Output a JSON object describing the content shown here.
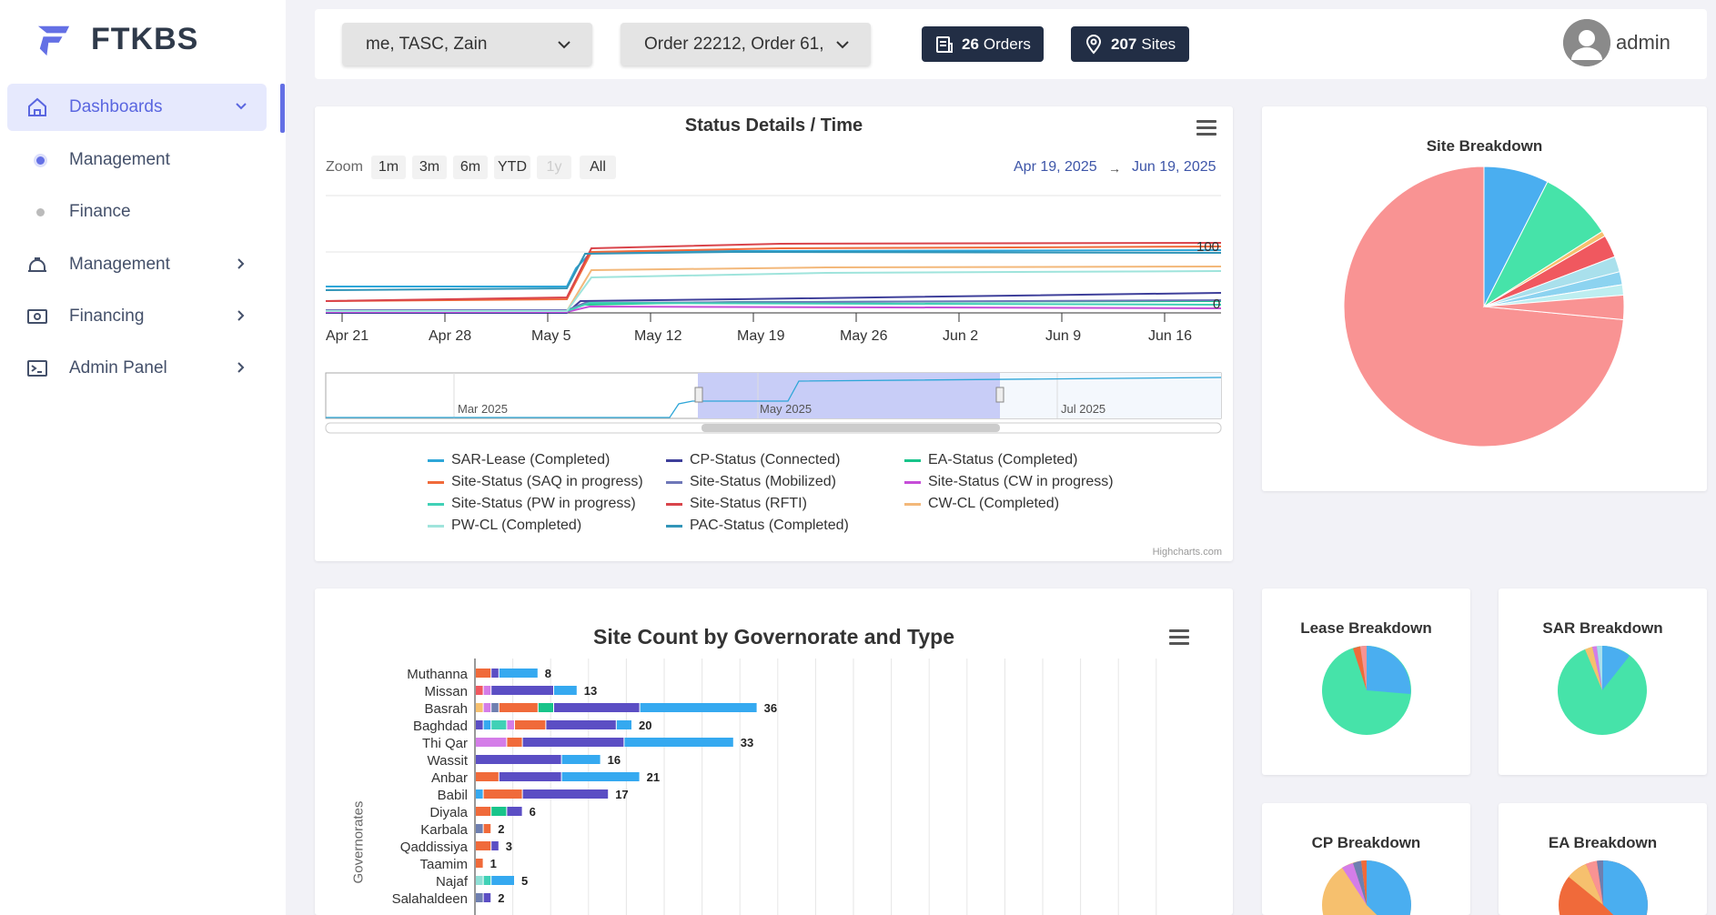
{
  "brand": {
    "name": "FTKBS"
  },
  "sidebar": {
    "items": [
      {
        "label": "Dashboards",
        "icon": "home-icon"
      },
      {
        "label": "Management",
        "icon": "dot-icon"
      },
      {
        "label": "Finance",
        "icon": "dot-icon"
      },
      {
        "label": "Management",
        "icon": "hard-hat-icon"
      },
      {
        "label": "Financing",
        "icon": "money-icon"
      },
      {
        "label": "Admin Panel",
        "icon": "terminal-icon"
      }
    ]
  },
  "topbar": {
    "filter1": "me, TASC, Zain",
    "filter2": "Order 22212, Order 61,",
    "orders_count": "26",
    "orders_label": "Orders",
    "sites_count": "207",
    "sites_label": "Sites",
    "user": "admin"
  },
  "status_chart": {
    "title": "Status Details / Time",
    "zoom_label": "Zoom",
    "zoom_buttons": [
      "1m",
      "3m",
      "6m",
      "YTD",
      "1y",
      "All"
    ],
    "date_from": "Apr 19, 2025",
    "date_to": "Jun 19, 2025",
    "arrow": "→",
    "credit": "Highcharts.com",
    "y_labels": [
      "100",
      "0"
    ],
    "navigator_labels": [
      "Mar 2025",
      "May 2025",
      "Jul 2025"
    ]
  },
  "site_breakdown": {
    "title": "Site Breakdown"
  },
  "small_pies": {
    "lease": "Lease Breakdown",
    "sar": "SAR Breakdown",
    "cp": "CP Breakdown",
    "ea": "EA Breakdown"
  },
  "bar_chart": {
    "title": "Site Count by Governorate and Type",
    "ylabel": "Governorates"
  },
  "colors": {
    "accent": "#6470e5",
    "dark_pill": "#222e45",
    "link": "#3d55a8"
  },
  "chart_data": [
    {
      "type": "line",
      "title": "Status Details / Time",
      "x_ticks": [
        "Apr 21",
        "Apr 28",
        "May 5",
        "May 12",
        "May 19",
        "May 26",
        "Jun 2",
        "Jun 9",
        "Jun 16"
      ],
      "series": [
        {
          "name": "SAR-Lease (Completed)",
          "color": "#2ea6d8"
        },
        {
          "name": "CP-Status (Connected)",
          "color": "#3e3f9a"
        },
        {
          "name": "EA-Status (Completed)",
          "color": "#18c48a"
        },
        {
          "name": "Site-Status (SAQ in progress)",
          "color": "#f06a3a"
        },
        {
          "name": "Site-Status (Mobilized)",
          "color": "#6e77b8"
        },
        {
          "name": "Site-Status (CW in progress)",
          "color": "#c64dd8"
        },
        {
          "name": "Site-Status (PW in progress)",
          "color": "#40d1b6"
        },
        {
          "name": "Site-Status (RFTI)",
          "color": "#d9444b"
        },
        {
          "name": "CW-CL (Completed)",
          "color": "#f3b87a"
        },
        {
          "name": "PW-CL (Completed)",
          "color": "#9fe4dc"
        },
        {
          "name": "PAC-Status (Completed)",
          "color": "#3295b8"
        }
      ]
    },
    {
      "type": "pie",
      "title": "Site Breakdown",
      "slices": [
        {
          "value": 73.5,
          "color": "#f99393"
        },
        {
          "value": 7.5,
          "color": "#4aaef0"
        },
        {
          "value": 8.5,
          "color": "#46e3a9"
        },
        {
          "value": 0.6,
          "color": "#f6c06e"
        },
        {
          "value": 2.6,
          "color": "#f0585f"
        },
        {
          "value": 1.8,
          "color": "#a9e0ec"
        },
        {
          "value": 1.5,
          "color": "#8cd3f0"
        },
        {
          "value": 1.2,
          "color": "#bdeef0"
        },
        {
          "value": 2.8,
          "color": "#f99393"
        }
      ]
    },
    {
      "type": "bar",
      "title": "Site Count by Governorate and Type",
      "ylabel": "Governorates",
      "categories": [
        "Muthanna",
        "Missan",
        "Basrah",
        "Baghdad",
        "Thi Qar",
        "Wassit",
        "Anbar",
        "Babil",
        "Diyala",
        "Karbala",
        "Qaddissiya",
        "Taamim",
        "Najaf",
        "Salahaldeen"
      ],
      "totals": [
        8,
        13,
        36,
        20,
        33,
        16,
        21,
        17,
        6,
        2,
        3,
        1,
        5,
        2
      ],
      "segments": [
        [
          [
            "#f06a3a",
            2
          ],
          [
            "#5b4ec4",
            1
          ],
          [
            "#35a9f0",
            5
          ]
        ],
        [
          [
            "#f0585f",
            1
          ],
          [
            "#d47de8",
            1
          ],
          [
            "#5b4ec4",
            8
          ],
          [
            "#35a9f0",
            3
          ]
        ],
        [
          [
            "#f6c06e",
            1
          ],
          [
            "#d47de8",
            1
          ],
          [
            "#6e7fb0",
            1
          ],
          [
            "#f06a3a",
            5
          ],
          [
            "#18c48a",
            2
          ],
          [
            "#5b4ec4",
            11
          ],
          [
            "#35a9f0",
            15
          ]
        ],
        [
          [
            "#5b4ec4",
            1
          ],
          [
            "#35a9f0",
            1
          ],
          [
            "#40d1b6",
            2
          ],
          [
            "#d47de8",
            1
          ],
          [
            "#f06a3a",
            4
          ],
          [
            "#5b4ec4",
            9
          ],
          [
            "#35a9f0",
            2
          ]
        ],
        [
          [
            "#d47de8",
            4
          ],
          [
            "#f06a3a",
            2
          ],
          [
            "#5b4ec4",
            13
          ],
          [
            "#35a9f0",
            14
          ]
        ],
        [
          [
            "#5b4ec4",
            11
          ],
          [
            "#35a9f0",
            5
          ]
        ],
        [
          [
            "#f06a3a",
            3
          ],
          [
            "#5b4ec4",
            8
          ],
          [
            "#35a9f0",
            10
          ]
        ],
        [
          [
            "#35a9f0",
            1
          ],
          [
            "#f06a3a",
            5
          ],
          [
            "#5b4ec4",
            11
          ]
        ],
        [
          [
            "#f06a3a",
            2
          ],
          [
            "#18c48a",
            2
          ],
          [
            "#5b4ec4",
            2
          ]
        ],
        [
          [
            "#6e7fb0",
            1
          ],
          [
            "#f06a3a",
            1
          ]
        ],
        [
          [
            "#f06a3a",
            2
          ],
          [
            "#5b4ec4",
            1
          ]
        ],
        [
          [
            "#f06a3a",
            1
          ]
        ],
        [
          [
            "#8fe0d6",
            1
          ],
          [
            "#40d1b6",
            1
          ],
          [
            "#35a9f0",
            3
          ]
        ],
        [
          [
            "#6e7fb0",
            1
          ],
          [
            "#5b4ec4",
            1
          ]
        ]
      ]
    }
  ]
}
